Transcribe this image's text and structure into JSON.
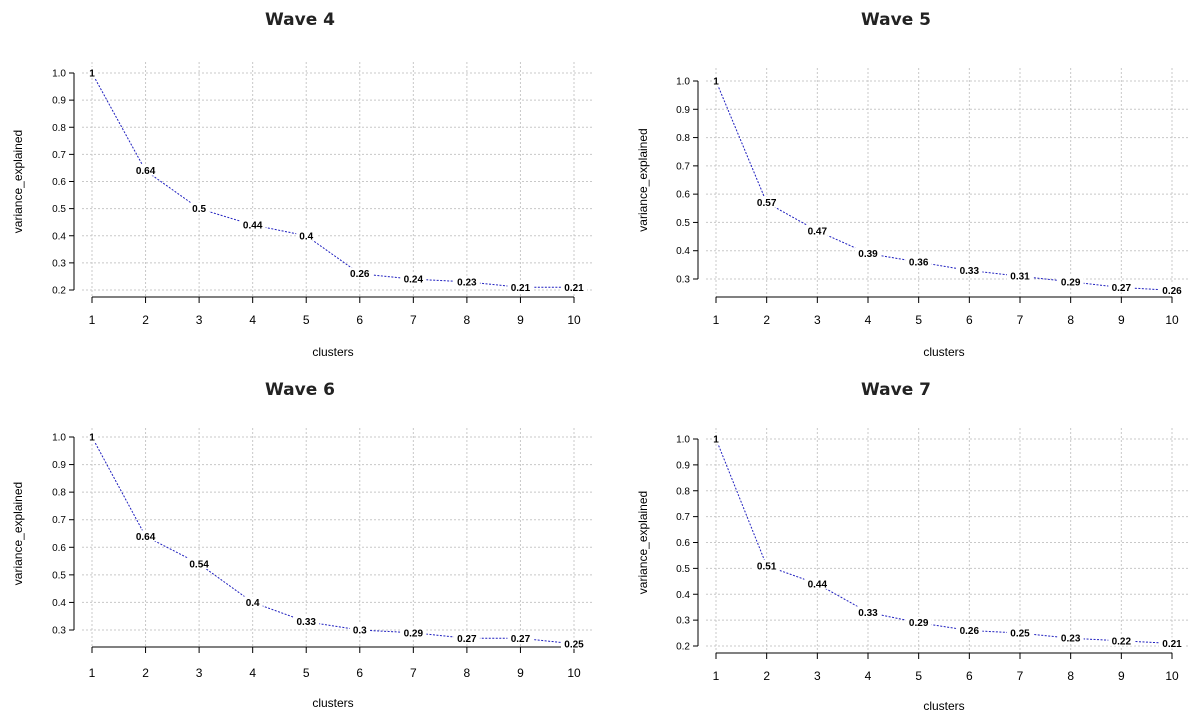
{
  "chart_data": [
    {
      "type": "line",
      "title": "Wave 4",
      "xlabel": "clusters",
      "ylabel": "variance_explained",
      "x": [
        1,
        2,
        3,
        4,
        5,
        6,
        7,
        8,
        9,
        10
      ],
      "y": [
        1,
        0.64,
        0.5,
        0.44,
        0.4,
        0.26,
        0.24,
        0.23,
        0.21,
        0.21
      ],
      "labels": [
        "1",
        "0.64",
        "0.5",
        "0.44",
        "0.4",
        "0.26",
        "0.24",
        "0.23",
        "0.21",
        "0.21"
      ],
      "yticks": [
        "0.2",
        "0.3",
        "0.4",
        "0.5",
        "0.6",
        "0.7",
        "0.8",
        "0.9",
        "1.0"
      ],
      "xticks": [
        "1",
        "2",
        "3",
        "4",
        "5",
        "6",
        "7",
        "8",
        "9",
        "10"
      ],
      "ylim": [
        0.2,
        1.0
      ],
      "grid": true,
      "line_color": "#1f1fbf"
    },
    {
      "type": "line",
      "title": "Wave 5",
      "xlabel": "clusters",
      "ylabel": "variance_explained",
      "x": [
        1,
        2,
        3,
        4,
        5,
        6,
        7,
        8,
        9,
        10
      ],
      "y": [
        1,
        0.57,
        0.47,
        0.39,
        0.36,
        0.33,
        0.31,
        0.29,
        0.27,
        0.26
      ],
      "labels": [
        "1",
        "0.57",
        "0.47",
        "0.39",
        "0.36",
        "0.33",
        "0.31",
        "0.29",
        "0.27",
        "0.26"
      ],
      "yticks": [
        "0.3",
        "0.4",
        "0.5",
        "0.6",
        "0.7",
        "0.8",
        "0.9",
        "1.0"
      ],
      "xticks": [
        "1",
        "2",
        "3",
        "4",
        "5",
        "6",
        "7",
        "8",
        "9",
        "10"
      ],
      "ylim": [
        0.3,
        1.0
      ],
      "grid": true,
      "line_color": "#1f1fbf"
    },
    {
      "type": "line",
      "title": "Wave 6",
      "xlabel": "clusters",
      "ylabel": "variance_explained",
      "x": [
        1,
        2,
        3,
        4,
        5,
        6,
        7,
        8,
        9,
        10
      ],
      "y": [
        1,
        0.64,
        0.54,
        0.4,
        0.33,
        0.3,
        0.29,
        0.27,
        0.27,
        0.25
      ],
      "labels": [
        "1",
        "0.64",
        "0.54",
        "0.4",
        "0.33",
        "0.3",
        "0.29",
        "0.27",
        "0.27",
        "0.25"
      ],
      "yticks": [
        "0.3",
        "0.4",
        "0.5",
        "0.6",
        "0.7",
        "0.8",
        "0.9",
        "1.0"
      ],
      "xticks": [
        "1",
        "2",
        "3",
        "4",
        "5",
        "6",
        "7",
        "8",
        "9",
        "10"
      ],
      "ylim": [
        0.3,
        1.0
      ],
      "grid": true,
      "line_color": "#1f1fbf"
    },
    {
      "type": "line",
      "title": "Wave 7",
      "xlabel": "clusters",
      "ylabel": "variance_explained",
      "x": [
        1,
        2,
        3,
        4,
        5,
        6,
        7,
        8,
        9,
        10
      ],
      "y": [
        1,
        0.51,
        0.44,
        0.33,
        0.29,
        0.26,
        0.25,
        0.23,
        0.22,
        0.21
      ],
      "labels": [
        "1",
        "0.51",
        "0.44",
        "0.33",
        "0.29",
        "0.26",
        "0.25",
        "0.23",
        "0.22",
        "0.21"
      ],
      "yticks": [
        "0.2",
        "0.3",
        "0.4",
        "0.5",
        "0.6",
        "0.7",
        "0.8",
        "0.9",
        "1.0"
      ],
      "xticks": [
        "1",
        "2",
        "3",
        "4",
        "5",
        "6",
        "7",
        "8",
        "9",
        "10"
      ],
      "ylim": [
        0.2,
        1.0
      ],
      "grid": true,
      "line_color": "#1f1fbf"
    }
  ]
}
